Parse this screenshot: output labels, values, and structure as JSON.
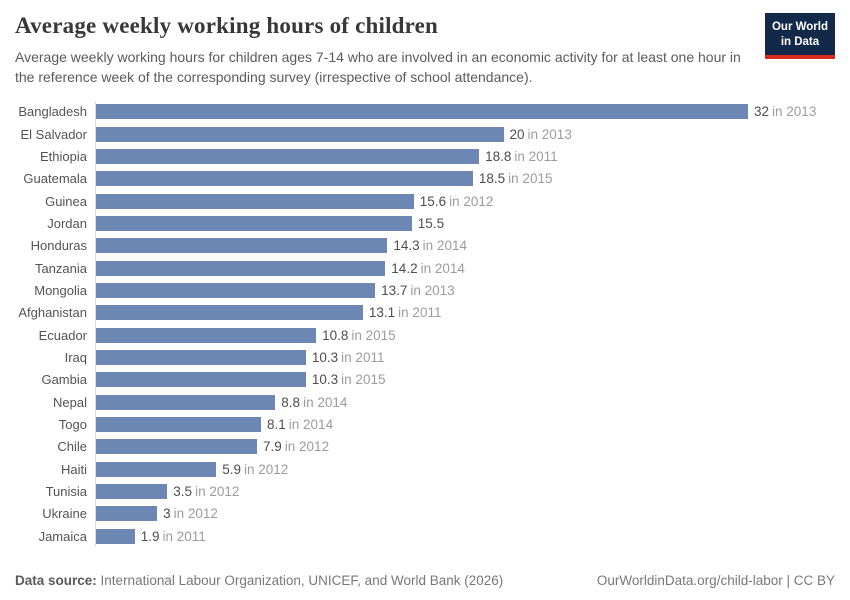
{
  "header": {
    "title": "Average weekly working hours of children",
    "subtitle": "Average weekly working hours for children ages 7-14 who are involved in an economic activity for at least one hour in the reference week of the corresponding survey (irrespective of school attendance).",
    "logo": {
      "line1": "Our World",
      "line2": "in Data"
    }
  },
  "chart_data": {
    "type": "bar",
    "orientation": "horizontal",
    "title": "Average weekly working hours of children",
    "xlabel": "",
    "ylabel": "",
    "xlim": [
      0,
      32
    ],
    "grid": false,
    "bar_color": "#6c87b3",
    "value_label_prefix": "in ",
    "categories": [
      "Bangladesh",
      "El Salvador",
      "Ethiopia",
      "Guatemala",
      "Guinea",
      "Jordan",
      "Honduras",
      "Tanzania",
      "Mongolia",
      "Afghanistan",
      "Ecuador",
      "Iraq",
      "Gambia",
      "Nepal",
      "Togo",
      "Chile",
      "Haiti",
      "Tunisia",
      "Ukraine",
      "Jamaica"
    ],
    "values": [
      32,
      20,
      18.8,
      18.5,
      15.6,
      15.5,
      14.3,
      14.2,
      13.7,
      13.1,
      10.8,
      10.3,
      10.3,
      8.8,
      8.1,
      7.9,
      5.9,
      3.5,
      3,
      1.9
    ],
    "years": [
      "2013",
      "2013",
      "2011",
      "2015",
      "2012",
      null,
      "2014",
      "2014",
      "2013",
      "2011",
      "2015",
      "2011",
      "2015",
      "2014",
      "2014",
      "2012",
      "2012",
      "2012",
      "2012",
      "2011"
    ]
  },
  "footer": {
    "source_label": "Data source:",
    "source_text": "International Labour Organization, UNICEF, and World Bank (2026)",
    "link_text": "OurWorldinData.org/child-labor | CC BY"
  },
  "colors": {
    "bar": "#6c87b3",
    "axis_line": "#dcdcdc",
    "value_number": "#4e4e4e",
    "value_year": "#9c9c9c",
    "logo_bg": "#12294a",
    "logo_accent": "#dc2c1e"
  }
}
